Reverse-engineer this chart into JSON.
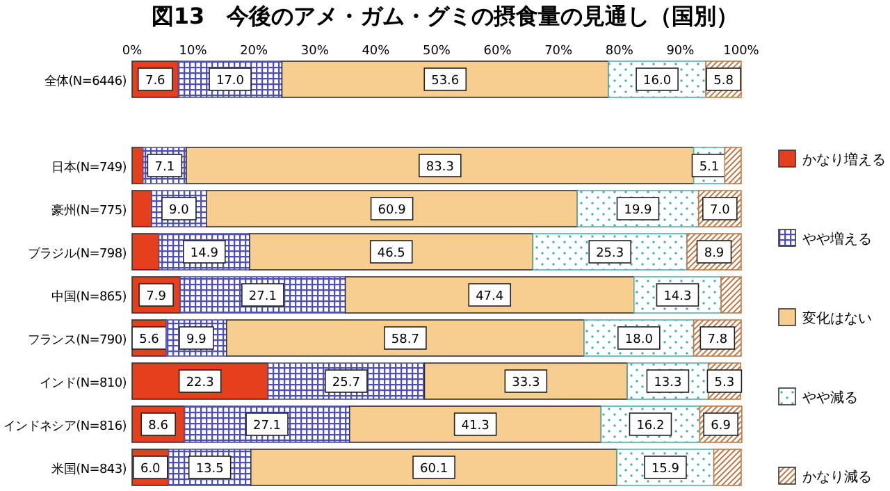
{
  "chart_data": {
    "type": "bar",
    "orientation": "horizontal",
    "stacked": true,
    "title": "図13　今後のアメ・ガム・グミの摂食量の見通し（国別）",
    "categories": [
      "全体(N=6446)",
      null,
      "日本(N=749)",
      "豪州(N=775)",
      "ブラジル(N=798)",
      "中国(N=865)",
      "フランス(N=790)",
      "インド(N=810)",
      "インドネシア(N=816)",
      "米国(N=843)"
    ],
    "series": [
      {
        "name": "かなり増える",
        "color": "#e4401e",
        "values": [
          7.6,
          null,
          1.8,
          3.2,
          4.4,
          7.9,
          5.6,
          22.3,
          8.6,
          6.0
        ],
        "value_labels": [
          "7.6",
          null,
          null,
          null,
          null,
          "7.9",
          "5.6",
          "22.3",
          "8.6",
          "6.0"
        ]
      },
      {
        "name": "やや増える",
        "color": "#4f52a8",
        "values": [
          17.0,
          null,
          7.1,
          9.0,
          14.9,
          27.1,
          9.9,
          25.7,
          27.1,
          13.5
        ],
        "value_labels": [
          "17.0",
          null,
          "7.1",
          "9.0",
          "14.9",
          "27.1",
          "9.9",
          "25.7",
          "27.1",
          "13.5"
        ]
      },
      {
        "name": "変化はない",
        "color": "#f8cd90",
        "values": [
          53.6,
          null,
          83.3,
          60.9,
          46.5,
          47.4,
          58.7,
          33.3,
          41.3,
          60.1
        ],
        "value_labels": [
          "53.6",
          null,
          "83.3",
          "60.9",
          "46.5",
          "47.4",
          "58.7",
          "33.3",
          "41.3",
          "60.1"
        ]
      },
      {
        "name": "やや減る",
        "color": "#4fb0b0",
        "values": [
          16.0,
          null,
          5.1,
          19.9,
          25.3,
          14.3,
          18.0,
          13.3,
          16.2,
          15.9
        ],
        "value_labels": [
          "16.0",
          null,
          "5.1",
          "19.9",
          "25.3",
          "14.3",
          "18.0",
          "13.3",
          "16.2",
          "15.9"
        ]
      },
      {
        "name": "かなり減る",
        "color": "#c07a48",
        "values": [
          5.8,
          null,
          2.7,
          7.0,
          8.9,
          3.3,
          7.8,
          5.3,
          6.9,
          4.5
        ],
        "value_labels": [
          "5.8",
          null,
          null,
          "7.0",
          "8.9",
          null,
          "7.8",
          "5.3",
          "6.9",
          null
        ]
      }
    ],
    "xlim": [
      0,
      100
    ],
    "xticks": [
      {
        "value": 0,
        "label": "0%"
      },
      {
        "value": 10,
        "label": "10%"
      },
      {
        "value": 20,
        "label": "20%"
      },
      {
        "value": 30,
        "label": "30%"
      },
      {
        "value": 40,
        "label": "40%"
      },
      {
        "value": 50,
        "label": "50%"
      },
      {
        "value": 60,
        "label": "60%"
      },
      {
        "value": 70,
        "label": "70%"
      },
      {
        "value": 80,
        "label": "80%"
      },
      {
        "value": 90,
        "label": "90%"
      },
      {
        "value": 100,
        "label": "100%"
      }
    ],
    "legend": "right"
  }
}
